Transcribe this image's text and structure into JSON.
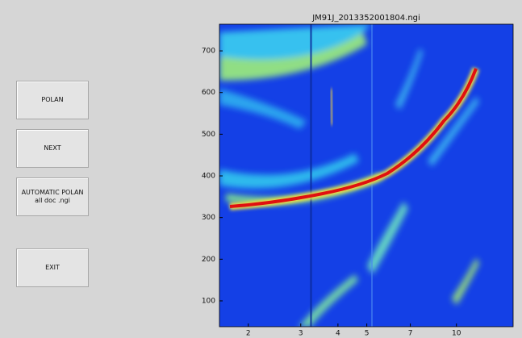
{
  "buttons": [
    {
      "lines": [
        "POLAN"
      ]
    },
    {
      "lines": [
        "NEXT"
      ]
    },
    {
      "lines": [
        "AUTOMATIC POLAN",
        "all doc .ngi"
      ]
    },
    {
      "lines": [
        "EXIT"
      ]
    }
  ],
  "plot": {
    "title": "JM91J_2013352001804.ngi",
    "xscale": "log",
    "xlim": [
      1.6,
      15.5
    ],
    "xticks": [
      2,
      3,
      4,
      5,
      7,
      10
    ],
    "ylim": [
      38,
      764
    ],
    "yticks": [
      100,
      200,
      300,
      400,
      500,
      600,
      700
    ]
  }
}
